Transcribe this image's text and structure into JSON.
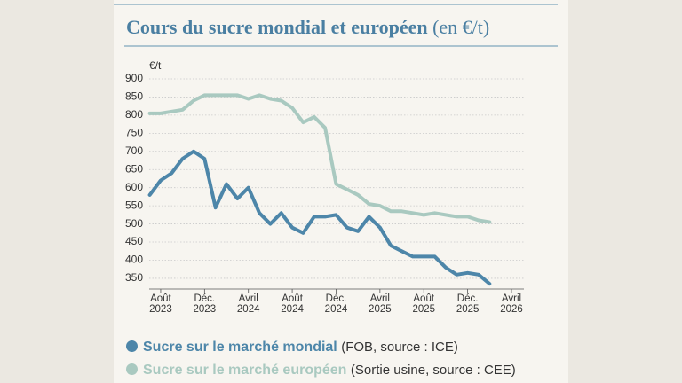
{
  "chart_data": {
    "type": "line",
    "title": "Cours du sucre mondial et européen",
    "title_unit": "(en €/t)",
    "y_label": "€/t",
    "x": [
      "2023-07",
      "2023-08",
      "2023-09",
      "2023-10",
      "2023-11",
      "2023-12",
      "2024-01",
      "2024-02",
      "2024-03",
      "2024-04",
      "2024-05",
      "2024-06",
      "2024-07",
      "2024-08",
      "2024-09",
      "2024-10",
      "2024-11",
      "2024-12",
      "2025-01",
      "2025-02",
      "2025-03",
      "2025-04",
      "2025-05",
      "2025-06",
      "2025-07",
      "2025-08",
      "2025-09",
      "2025-10",
      "2025-11",
      "2025-12",
      "2026-01",
      "2026-02"
    ],
    "series": [
      {
        "name": "Sucre sur le marché mondial",
        "note": "(FOB, source : ICE)",
        "color": "#4d86a9",
        "values": [
          580,
          620,
          640,
          680,
          700,
          680,
          545,
          610,
          570,
          600,
          530,
          500,
          530,
          490,
          475,
          520,
          520,
          525,
          490,
          480,
          520,
          490,
          440,
          425,
          410,
          410,
          410,
          380,
          360,
          365,
          360,
          335
        ]
      },
      {
        "name": "Sucre sur le marché européen",
        "note": "(Sortie usine, source : CEE)",
        "color": "#a9c9c0",
        "values": [
          805,
          805,
          810,
          815,
          840,
          855,
          855,
          855,
          855,
          845,
          855,
          845,
          840,
          820,
          780,
          795,
          765,
          610,
          595,
          580,
          555,
          550,
          535,
          535,
          530,
          525,
          530,
          525,
          520,
          520,
          510,
          505
        ]
      }
    ],
    "xlim": [
      "2023-07",
      "2026-04"
    ],
    "xticks": [
      {
        "value": "2023-08",
        "label": "Août\n2023"
      },
      {
        "value": "2023-12",
        "label": "Déc.\n2023"
      },
      {
        "value": "2024-04",
        "label": "Avril\n2024"
      },
      {
        "value": "2024-08",
        "label": "Août\n2024"
      },
      {
        "value": "2024-12",
        "label": "Déc.\n2024"
      },
      {
        "value": "2025-04",
        "label": "Avril\n2025"
      },
      {
        "value": "2025-08",
        "label": "Août\n2025"
      },
      {
        "value": "2025-12",
        "label": "Déc.\n2025"
      },
      {
        "value": "2026-04",
        "label": "Avril\n2026"
      }
    ],
    "ylim": [
      320,
      900
    ],
    "yticks": [
      350,
      400,
      450,
      500,
      550,
      600,
      650,
      700,
      750,
      800,
      850,
      900
    ],
    "grid": true
  }
}
